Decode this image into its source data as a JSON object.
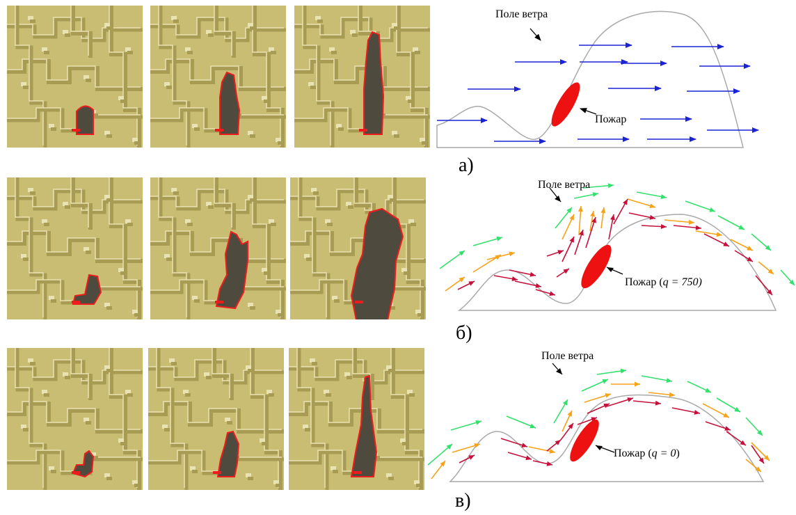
{
  "colors": {
    "terrain_light": "#c9bd74",
    "terrain_dark": "#a89c55",
    "terrain_highlight": "#e9e2b2",
    "burnt": "#4f4a3e",
    "fire_front": "#ee1c1c",
    "wind_blue": "#1a23d6",
    "wind_green": "#33e06b",
    "wind_orange": "#f6a21a",
    "wind_red": "#c4103a",
    "terrain_line": "#a9a9a9",
    "fire": "#ee1111"
  },
  "rows": [
    {
      "id": "a",
      "label": "а)",
      "annotations": {
        "wind": "Поле ветра",
        "fire_prefix": "Пожар",
        "fire_q": "",
        "fire_suffix": ""
      },
      "frames": [
        {
          "shape": "small-blob"
        },
        {
          "shape": "narrow-mid"
        },
        {
          "shape": "narrow-tall"
        }
      ]
    },
    {
      "id": "b",
      "label": "б)",
      "annotations": {
        "wind": "Поле ветра",
        "fire_prefix": "Пожар (",
        "fire_q": "q = 750)",
        "fire_suffix": ""
      },
      "frames": [
        {
          "shape": "hook-small"
        },
        {
          "shape": "hook-mid"
        },
        {
          "shape": "wide-large"
        }
      ]
    },
    {
      "id": "v",
      "label": "в)",
      "annotations": {
        "wind": "Поле ветра",
        "fire_prefix": "Пожар (",
        "fire_q": "q = 0",
        "fire_suffix": ")"
      },
      "frames": [
        {
          "shape": "hook-small-2"
        },
        {
          "shape": "hook-mid-2"
        },
        {
          "shape": "narrow-tall-2"
        }
      ]
    }
  ]
}
